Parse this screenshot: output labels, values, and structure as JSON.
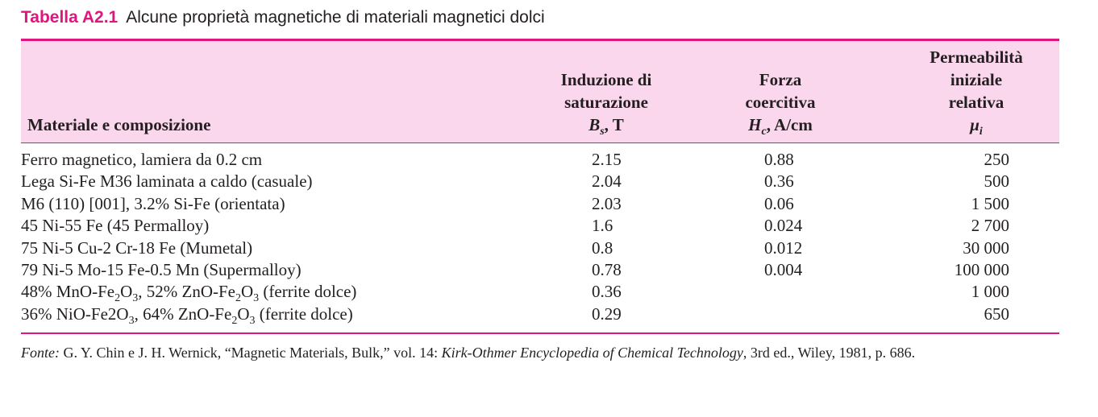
{
  "caption": {
    "label": "Tabella A2.1",
    "title": "Alcune proprietà magnetiche di materiali magnetici dolci"
  },
  "header": {
    "material": "Materiale e composizione",
    "induction": [
      "Induzione di",
      "saturazione",
      "Bs, T"
    ],
    "coercive": [
      "Forza",
      "coercitiva",
      "Hc, A/cm"
    ],
    "permeability": [
      "Permeabilità",
      "iniziale",
      "relativa",
      "μi"
    ]
  },
  "rows": [
    {
      "material": "Ferro magnetico, lamiera da 0.2 cm",
      "induction": "2.15",
      "coercive": "0.88",
      "permeability": "250"
    },
    {
      "material": "Lega Si-Fe M36 laminata a caldo (casuale)",
      "induction": "2.04",
      "coercive": "0.36",
      "permeability": "500"
    },
    {
      "material": "M6 (110) [001], 3.2% Si-Fe (orientata)",
      "induction": "2.03",
      "coercive": "0.06",
      "permeability": "1 500"
    },
    {
      "material": "45 Ni-55 Fe (45 Permalloy)",
      "induction": "1.6",
      "coercive": "0.024",
      "permeability": "2 700"
    },
    {
      "material": "75 Ni-5 Cu-2 Cr-18 Fe (Mumetal)",
      "induction": "0.8",
      "coercive": "0.012",
      "permeability": "30 000"
    },
    {
      "material": "79 Ni-5 Mo-15 Fe-0.5 Mn (Supermalloy)",
      "induction": "0.78",
      "coercive": "0.004",
      "permeability": "100 000"
    },
    {
      "material": "48% MnO-Fe2O3, 52% ZnO-Fe2O3 (ferrite dolce)",
      "induction": "0.36",
      "coercive": "",
      "permeability": "1 000"
    },
    {
      "material": "36% NiO-Fe2O3, 64% ZnO-Fe2O3 (ferrite dolce)",
      "induction": "0.29",
      "coercive": "",
      "permeability": "650"
    }
  ],
  "source": {
    "label": "Fonte:",
    "text_before": "G. Y. Chin e J. H. Wernick, “Magnetic Materials, Bulk,” vol. 14: ",
    "publication": "Kirk-Othmer Encyclopedia of Chemical Technology",
    "text_after": ", 3rd ed., Wiley, 1981, p. 686."
  },
  "colors": {
    "accent": "#e0157d",
    "header_bg": "#fbd7ee",
    "text": "#231f20"
  }
}
